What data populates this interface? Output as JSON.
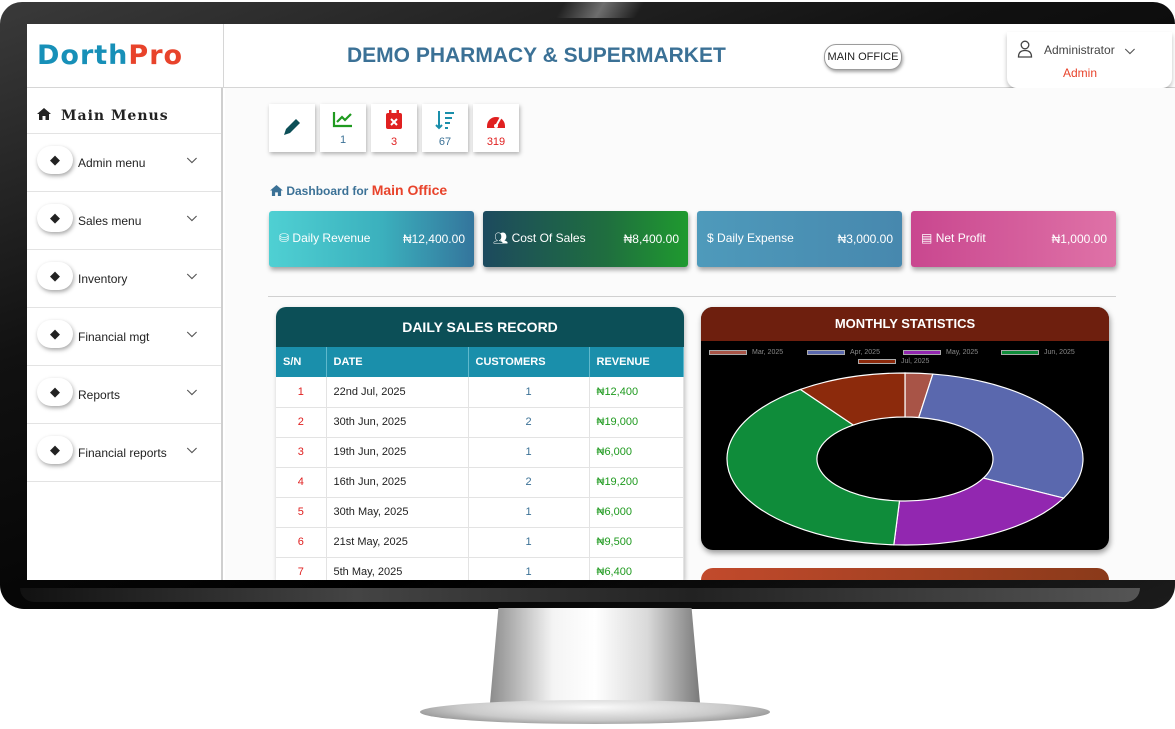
{
  "header": {
    "logo_part1": "Dorth",
    "logo_part2": "Pro",
    "title": "DEMO PHARMACY & SUPERMARKET",
    "office_button": "MAIN OFFICE",
    "user_name": "Administrator",
    "user_role": "Admin"
  },
  "sidebar": {
    "heading": "Main Menus",
    "items": [
      {
        "label": "Admin menu"
      },
      {
        "label": "Sales menu"
      },
      {
        "label": "Inventory"
      },
      {
        "label": "Financial mgt"
      },
      {
        "label": "Reports"
      },
      {
        "label": "Financial reports"
      }
    ]
  },
  "quick_tiles": [
    {
      "icon": "pencil-icon",
      "value": "",
      "color": "#0c4f57"
    },
    {
      "icon": "chart-line-icon",
      "value": "1",
      "color": "#1f9a1f"
    },
    {
      "icon": "calendar-x-icon",
      "value": "3",
      "color": "#e02020"
    },
    {
      "icon": "sort-icon",
      "value": "67",
      "color": "#1a8fab"
    },
    {
      "icon": "gauge-icon",
      "value": "319",
      "color": "#e02020"
    }
  ],
  "dashboard": {
    "prefix": "Dashboard for",
    "office": "Main Office"
  },
  "stat_cards": [
    {
      "label": "Daily Revenue",
      "value": "₦12,400.00",
      "icon": "coins-icon"
    },
    {
      "label": "Cost Of Sales",
      "value": "₦8,400.00",
      "icon": "users-icon"
    },
    {
      "label": "Daily Expense",
      "value": "₦3,000.00",
      "icon": "hand-dollar-icon"
    },
    {
      "label": "Net Profit",
      "value": "₦1,000.00",
      "icon": "card-icon"
    }
  ],
  "sales_table": {
    "title": "DAILY SALES RECORD",
    "columns": [
      "S/N",
      "DATE",
      "CUSTOMERS",
      "REVENUE"
    ],
    "rows": [
      {
        "sn": "1",
        "date": "22nd Jul, 2025",
        "customers": "1",
        "revenue": "₦12,400"
      },
      {
        "sn": "2",
        "date": "30th Jun, 2025",
        "customers": "2",
        "revenue": "₦19,000"
      },
      {
        "sn": "3",
        "date": "19th Jun, 2025",
        "customers": "1",
        "revenue": "₦6,000"
      },
      {
        "sn": "4",
        "date": "16th Jun, 2025",
        "customers": "2",
        "revenue": "₦19,200"
      },
      {
        "sn": "5",
        "date": "30th May, 2025",
        "customers": "1",
        "revenue": "₦6,000"
      },
      {
        "sn": "6",
        "date": "21st May, 2025",
        "customers": "1",
        "revenue": "₦9,500"
      },
      {
        "sn": "7",
        "date": "5th May, 2025",
        "customers": "1",
        "revenue": "₦6,400"
      }
    ]
  },
  "chart_data": {
    "type": "pie",
    "title": "MONTHLY STATISTICS",
    "donut": true,
    "legend_position": "top",
    "categories": [
      "Mar, 2025",
      "Apr, 2025",
      "May, 2025",
      "Jun, 2025",
      "Jul, 2025"
    ],
    "values": [
      2.5,
      30,
      18.5,
      39,
      10
    ],
    "colors": [
      "#a85447",
      "#5a68ae",
      "#9227b0",
      "#0f8c3a",
      "#8c2a0c"
    ]
  }
}
